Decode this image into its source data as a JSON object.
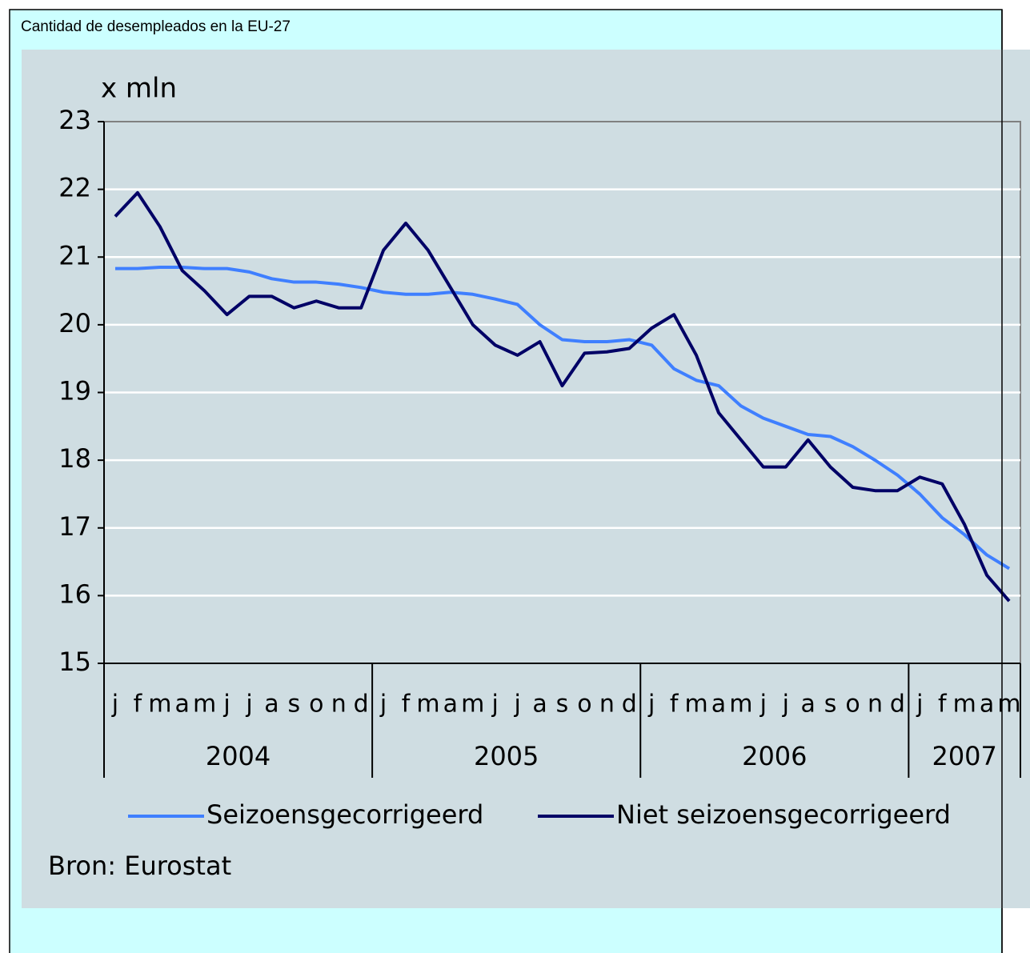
{
  "chart_data": {
    "type": "line",
    "title": "Cantidad de desempleados en la EU-27",
    "y_label": "x mln",
    "source": "Bron: Eurostat",
    "categories": [
      "j",
      "f",
      "m",
      "a",
      "m",
      "j",
      "j",
      "a",
      "s",
      "o",
      "n",
      "d",
      "j",
      "f",
      "m",
      "a",
      "m",
      "j",
      "j",
      "a",
      "s",
      "o",
      "n",
      "d",
      "j",
      "f",
      "m",
      "a",
      "m",
      "j",
      "j",
      "a",
      "s",
      "o",
      "n",
      "d",
      "j",
      "f",
      "m",
      "a",
      "m"
    ],
    "years": [
      "2004",
      "2005",
      "2006",
      "2007"
    ],
    "ylim": [
      15,
      23
    ],
    "yticks": [
      15,
      16,
      17,
      18,
      19,
      20,
      21,
      22,
      23
    ],
    "grid": true,
    "series": [
      {
        "name": "Seizoensgecorrigeerd",
        "color": "#3f7fff",
        "values": [
          20.83,
          20.83,
          20.85,
          20.85,
          20.83,
          20.83,
          20.78,
          20.68,
          20.63,
          20.63,
          20.6,
          20.55,
          20.48,
          20.45,
          20.45,
          20.48,
          20.45,
          20.38,
          20.3,
          20.0,
          19.78,
          19.75,
          19.75,
          19.78,
          19.7,
          19.35,
          19.18,
          19.1,
          18.8,
          18.62,
          18.5,
          18.38,
          18.35,
          18.2,
          18.0,
          17.78,
          17.5,
          17.15,
          16.9,
          16.6,
          16.4
        ]
      },
      {
        "name": "Niet seizoensgecorrigeerd",
        "color": "#000066",
        "values": [
          21.6,
          21.95,
          21.45,
          20.8,
          20.5,
          20.15,
          20.42,
          20.42,
          20.25,
          20.35,
          20.25,
          20.25,
          21.1,
          21.5,
          21.1,
          20.55,
          20.0,
          19.7,
          19.55,
          19.75,
          19.1,
          19.58,
          19.6,
          19.65,
          19.95,
          20.15,
          19.55,
          18.7,
          18.3,
          17.9,
          17.9,
          18.3,
          17.9,
          17.6,
          17.55,
          17.55,
          17.75,
          17.65,
          17.05,
          16.3,
          15.92
        ]
      }
    ]
  }
}
